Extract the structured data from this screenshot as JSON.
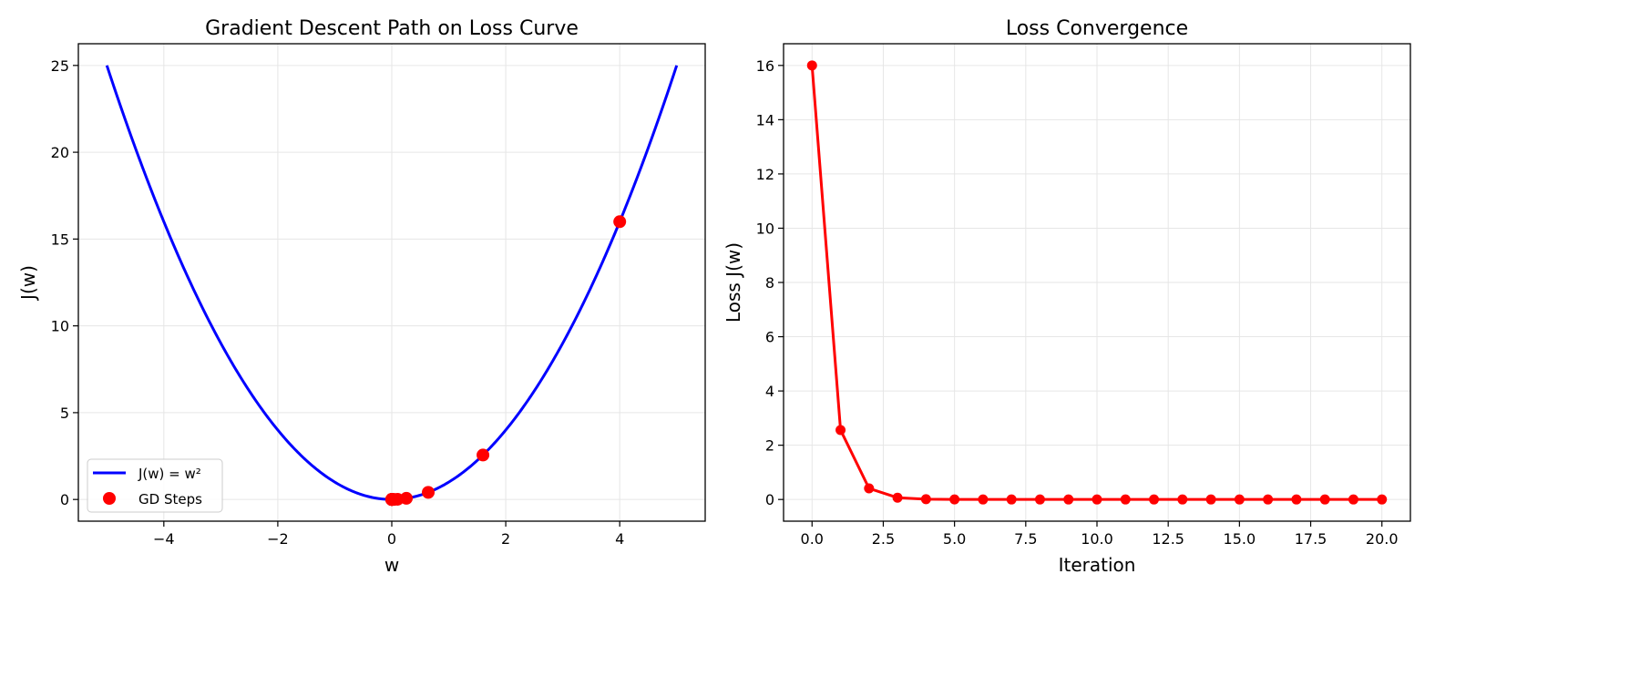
{
  "chart_data": [
    {
      "type": "line",
      "title": "Gradient Descent Path on Loss Curve",
      "xlabel": "w",
      "ylabel": "J(w)",
      "xlim": [
        -5.5,
        5.5
      ],
      "ylim": [
        -1.25,
        26.25
      ],
      "xticks": [
        -4,
        -2,
        0,
        2,
        4
      ],
      "xtick_labels": [
        "−4",
        "−2",
        "0",
        "2",
        "4"
      ],
      "yticks": [
        0,
        5,
        10,
        15,
        20,
        25
      ],
      "ytick_labels": [
        "0",
        "5",
        "10",
        "15",
        "20",
        "25"
      ],
      "grid": true,
      "legend": "lower-left",
      "series": [
        {
          "name": "J(w) = w²",
          "kind": "line",
          "color": "#0000ff",
          "function": "w^2",
          "x_range": [
            -5,
            5
          ]
        },
        {
          "name": "GD Steps",
          "kind": "scatter",
          "color": "#ff0000",
          "x": [
            4,
            1.6,
            0.64,
            0.256,
            0.1024,
            0.04096,
            0.016384,
            0.0065536,
            0.00262144,
            0.00104858,
            0.00041943,
            0.00016777,
            6.711e-05,
            2.684e-05,
            1.074e-05,
            4.3e-06,
            1.7e-06,
            7e-07,
            3e-07,
            1e-07,
            4e-08
          ],
          "y": [
            16,
            2.56,
            0.4096,
            0.065536,
            0.01048576,
            0.00167772,
            0.00026844,
            4.295e-05,
            6.87e-06,
            1.1e-06,
            1.8e-07,
            3e-08,
            0,
            0,
            0,
            0,
            0,
            0,
            0,
            0,
            0
          ]
        }
      ]
    },
    {
      "type": "line",
      "title": "Loss Convergence",
      "xlabel": "Iteration",
      "ylabel": "Loss J(w)",
      "xlim": [
        -1,
        21
      ],
      "ylim": [
        -0.8,
        16.8
      ],
      "xticks": [
        0,
        2.5,
        5,
        7.5,
        10,
        12.5,
        15,
        17.5,
        20
      ],
      "xtick_labels": [
        "0.0",
        "2.5",
        "5.0",
        "7.5",
        "10.0",
        "12.5",
        "15.0",
        "17.5",
        "20.0"
      ],
      "yticks": [
        0,
        2,
        4,
        6,
        8,
        10,
        12,
        14,
        16
      ],
      "ytick_labels": [
        "0",
        "2",
        "4",
        "6",
        "8",
        "10",
        "12",
        "14",
        "16"
      ],
      "grid": true,
      "series": [
        {
          "color": "#ff0000",
          "x": [
            0,
            1,
            2,
            3,
            4,
            5,
            6,
            7,
            8,
            9,
            10,
            11,
            12,
            13,
            14,
            15,
            16,
            17,
            18,
            19,
            20
          ],
          "y": [
            16,
            2.56,
            0.4096,
            0.065536,
            0.01048576,
            0.00167772,
            0.00026844,
            4.295e-05,
            6.87e-06,
            1.1e-06,
            1.8e-07,
            3e-08,
            0,
            0,
            0,
            0,
            0,
            0,
            0,
            0,
            0
          ]
        }
      ]
    }
  ]
}
